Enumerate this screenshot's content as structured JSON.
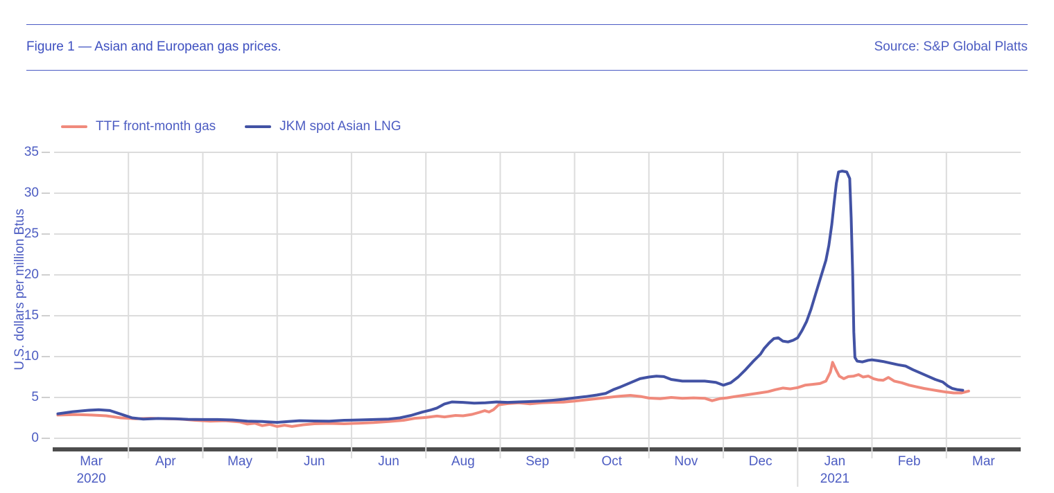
{
  "header": {
    "title": "Figure 1 — Asian and European gas prices.",
    "source": "Source: S&P Global Platts"
  },
  "colors": {
    "text_blue": "#4c5cc2",
    "title_blue": "#3d4fc0",
    "grid": "#dcdcdc",
    "tick": "#cfcfcf",
    "axis_bar": "#4d4d4d",
    "ttf": "#f08a7c",
    "jkm": "#4252a4"
  },
  "chart_data": {
    "type": "line",
    "title": "Figure 1 — Asian and European gas prices.",
    "source": "Source: S&P Global Platts",
    "ylabel": "U.S. dollars per million Btus",
    "ylim": [
      0,
      35
    ],
    "yticks": [
      0,
      5,
      10,
      15,
      20,
      25,
      30,
      35
    ],
    "grid": true,
    "legend_position": "top-left",
    "x_axis": {
      "unit": "months from March 2020",
      "range": [
        0,
        13
      ],
      "month_labels": [
        "Mar",
        "Apr",
        "May",
        "Jun",
        "Jun",
        "Aug",
        "Sep",
        "Oct",
        "Nov",
        "Dec",
        "Jan",
        "Feb",
        "Mar"
      ],
      "year_labels": [
        {
          "month_index": 0,
          "text": "2020"
        },
        {
          "month_index": 10,
          "text": "2021"
        }
      ]
    },
    "series": [
      {
        "name": "TTF front-month gas",
        "color": "#f08a7c",
        "points": [
          [
            0.05,
            2.85
          ],
          [
            0.3,
            2.9
          ],
          [
            0.5,
            2.85
          ],
          [
            0.7,
            2.75
          ],
          [
            0.9,
            2.5
          ],
          [
            1.1,
            2.4
          ],
          [
            1.3,
            2.45
          ],
          [
            1.5,
            2.4
          ],
          [
            1.7,
            2.35
          ],
          [
            1.9,
            2.2
          ],
          [
            2.1,
            2.1
          ],
          [
            2.3,
            2.15
          ],
          [
            2.5,
            2.0
          ],
          [
            2.6,
            1.75
          ],
          [
            2.7,
            1.85
          ],
          [
            2.8,
            1.55
          ],
          [
            2.9,
            1.7
          ],
          [
            3.0,
            1.45
          ],
          [
            3.1,
            1.6
          ],
          [
            3.2,
            1.45
          ],
          [
            3.35,
            1.65
          ],
          [
            3.5,
            1.78
          ],
          [
            3.7,
            1.82
          ],
          [
            3.9,
            1.78
          ],
          [
            4.1,
            1.85
          ],
          [
            4.3,
            1.92
          ],
          [
            4.5,
            2.05
          ],
          [
            4.7,
            2.2
          ],
          [
            4.85,
            2.45
          ],
          [
            5.0,
            2.55
          ],
          [
            5.15,
            2.72
          ],
          [
            5.25,
            2.62
          ],
          [
            5.4,
            2.8
          ],
          [
            5.5,
            2.75
          ],
          [
            5.62,
            2.92
          ],
          [
            5.72,
            3.18
          ],
          [
            5.79,
            3.38
          ],
          [
            5.85,
            3.22
          ],
          [
            5.91,
            3.5
          ],
          [
            5.98,
            4.1
          ],
          [
            6.1,
            4.25
          ],
          [
            6.25,
            4.35
          ],
          [
            6.4,
            4.22
          ],
          [
            6.55,
            4.35
          ],
          [
            6.7,
            4.4
          ],
          [
            6.85,
            4.42
          ],
          [
            7.0,
            4.55
          ],
          [
            7.15,
            4.7
          ],
          [
            7.3,
            4.85
          ],
          [
            7.45,
            5.0
          ],
          [
            7.6,
            5.15
          ],
          [
            7.75,
            5.25
          ],
          [
            7.9,
            5.1
          ],
          [
            8.0,
            4.92
          ],
          [
            8.15,
            4.85
          ],
          [
            8.3,
            5.0
          ],
          [
            8.45,
            4.9
          ],
          [
            8.6,
            4.95
          ],
          [
            8.75,
            4.9
          ],
          [
            8.85,
            4.6
          ],
          [
            8.95,
            4.85
          ],
          [
            9.05,
            4.95
          ],
          [
            9.15,
            5.1
          ],
          [
            9.3,
            5.3
          ],
          [
            9.45,
            5.5
          ],
          [
            9.6,
            5.7
          ],
          [
            9.7,
            5.95
          ],
          [
            9.8,
            6.15
          ],
          [
            9.9,
            6.05
          ],
          [
            10.0,
            6.2
          ],
          [
            10.1,
            6.5
          ],
          [
            10.2,
            6.6
          ],
          [
            10.3,
            6.7
          ],
          [
            10.38,
            7.0
          ],
          [
            10.44,
            8.1
          ],
          [
            10.47,
            9.3
          ],
          [
            10.52,
            8.3
          ],
          [
            10.56,
            7.6
          ],
          [
            10.62,
            7.3
          ],
          [
            10.68,
            7.55
          ],
          [
            10.75,
            7.6
          ],
          [
            10.82,
            7.8
          ],
          [
            10.88,
            7.5
          ],
          [
            10.95,
            7.62
          ],
          [
            11.02,
            7.3
          ],
          [
            11.08,
            7.15
          ],
          [
            11.15,
            7.1
          ],
          [
            11.22,
            7.45
          ],
          [
            11.3,
            7.0
          ],
          [
            11.4,
            6.8
          ],
          [
            11.5,
            6.5
          ],
          [
            11.6,
            6.3
          ],
          [
            11.7,
            6.1
          ],
          [
            11.8,
            5.95
          ],
          [
            11.9,
            5.8
          ],
          [
            12.0,
            5.65
          ],
          [
            12.1,
            5.55
          ],
          [
            12.2,
            5.55
          ],
          [
            12.3,
            5.78
          ]
        ]
      },
      {
        "name": "JKM spot Asian LNG",
        "color": "#4252a4",
        "points": [
          [
            0.05,
            3.0
          ],
          [
            0.25,
            3.25
          ],
          [
            0.45,
            3.42
          ],
          [
            0.6,
            3.5
          ],
          [
            0.75,
            3.4
          ],
          [
            0.9,
            2.95
          ],
          [
            1.05,
            2.5
          ],
          [
            1.2,
            2.35
          ],
          [
            1.4,
            2.42
          ],
          [
            1.6,
            2.4
          ],
          [
            1.8,
            2.32
          ],
          [
            2.0,
            2.3
          ],
          [
            2.2,
            2.3
          ],
          [
            2.4,
            2.25
          ],
          [
            2.6,
            2.1
          ],
          [
            2.8,
            2.05
          ],
          [
            3.0,
            1.95
          ],
          [
            3.15,
            2.05
          ],
          [
            3.3,
            2.15
          ],
          [
            3.5,
            2.12
          ],
          [
            3.7,
            2.1
          ],
          [
            3.9,
            2.2
          ],
          [
            4.1,
            2.25
          ],
          [
            4.3,
            2.3
          ],
          [
            4.5,
            2.35
          ],
          [
            4.65,
            2.5
          ],
          [
            4.8,
            2.8
          ],
          [
            4.95,
            3.2
          ],
          [
            5.05,
            3.42
          ],
          [
            5.15,
            3.7
          ],
          [
            5.25,
            4.2
          ],
          [
            5.35,
            4.45
          ],
          [
            5.5,
            4.4
          ],
          [
            5.65,
            4.3
          ],
          [
            5.8,
            4.35
          ],
          [
            5.95,
            4.45
          ],
          [
            6.1,
            4.4
          ],
          [
            6.25,
            4.45
          ],
          [
            6.4,
            4.5
          ],
          [
            6.55,
            4.55
          ],
          [
            6.7,
            4.65
          ],
          [
            6.85,
            4.78
          ],
          [
            7.0,
            4.95
          ],
          [
            7.15,
            5.1
          ],
          [
            7.3,
            5.3
          ],
          [
            7.42,
            5.5
          ],
          [
            7.52,
            5.95
          ],
          [
            7.62,
            6.3
          ],
          [
            7.75,
            6.8
          ],
          [
            7.88,
            7.3
          ],
          [
            8.0,
            7.5
          ],
          [
            8.1,
            7.6
          ],
          [
            8.2,
            7.55
          ],
          [
            8.3,
            7.2
          ],
          [
            8.45,
            7.0
          ],
          [
            8.6,
            7.0
          ],
          [
            8.75,
            7.0
          ],
          [
            8.9,
            6.85
          ],
          [
            9.0,
            6.5
          ],
          [
            9.1,
            6.8
          ],
          [
            9.2,
            7.5
          ],
          [
            9.3,
            8.4
          ],
          [
            9.4,
            9.4
          ],
          [
            9.5,
            10.3
          ],
          [
            9.55,
            11.0
          ],
          [
            9.62,
            11.7
          ],
          [
            9.68,
            12.2
          ],
          [
            9.74,
            12.3
          ],
          [
            9.8,
            11.9
          ],
          [
            9.87,
            11.8
          ],
          [
            9.94,
            12.0
          ],
          [
            10.0,
            12.3
          ],
          [
            10.06,
            13.2
          ],
          [
            10.12,
            14.3
          ],
          [
            10.18,
            15.8
          ],
          [
            10.24,
            17.6
          ],
          [
            10.28,
            18.8
          ],
          [
            10.33,
            20.3
          ],
          [
            10.38,
            21.8
          ],
          [
            10.42,
            23.6
          ],
          [
            10.46,
            26.2
          ],
          [
            10.49,
            28.8
          ],
          [
            10.52,
            31.2
          ],
          [
            10.55,
            32.6
          ],
          [
            10.6,
            32.7
          ],
          [
            10.66,
            32.6
          ],
          [
            10.7,
            31.8
          ],
          [
            10.72,
            27.0
          ],
          [
            10.74,
            20.0
          ],
          [
            10.755,
            13.0
          ],
          [
            10.77,
            9.9
          ],
          [
            10.8,
            9.45
          ],
          [
            10.87,
            9.35
          ],
          [
            10.95,
            9.55
          ],
          [
            11.0,
            9.6
          ],
          [
            11.08,
            9.5
          ],
          [
            11.15,
            9.4
          ],
          [
            11.25,
            9.2
          ],
          [
            11.35,
            9.0
          ],
          [
            11.45,
            8.85
          ],
          [
            11.55,
            8.4
          ],
          [
            11.65,
            8.0
          ],
          [
            11.75,
            7.6
          ],
          [
            11.85,
            7.2
          ],
          [
            11.95,
            6.9
          ],
          [
            12.02,
            6.4
          ],
          [
            12.08,
            6.1
          ],
          [
            12.15,
            5.95
          ],
          [
            12.22,
            5.88
          ]
        ]
      }
    ]
  }
}
